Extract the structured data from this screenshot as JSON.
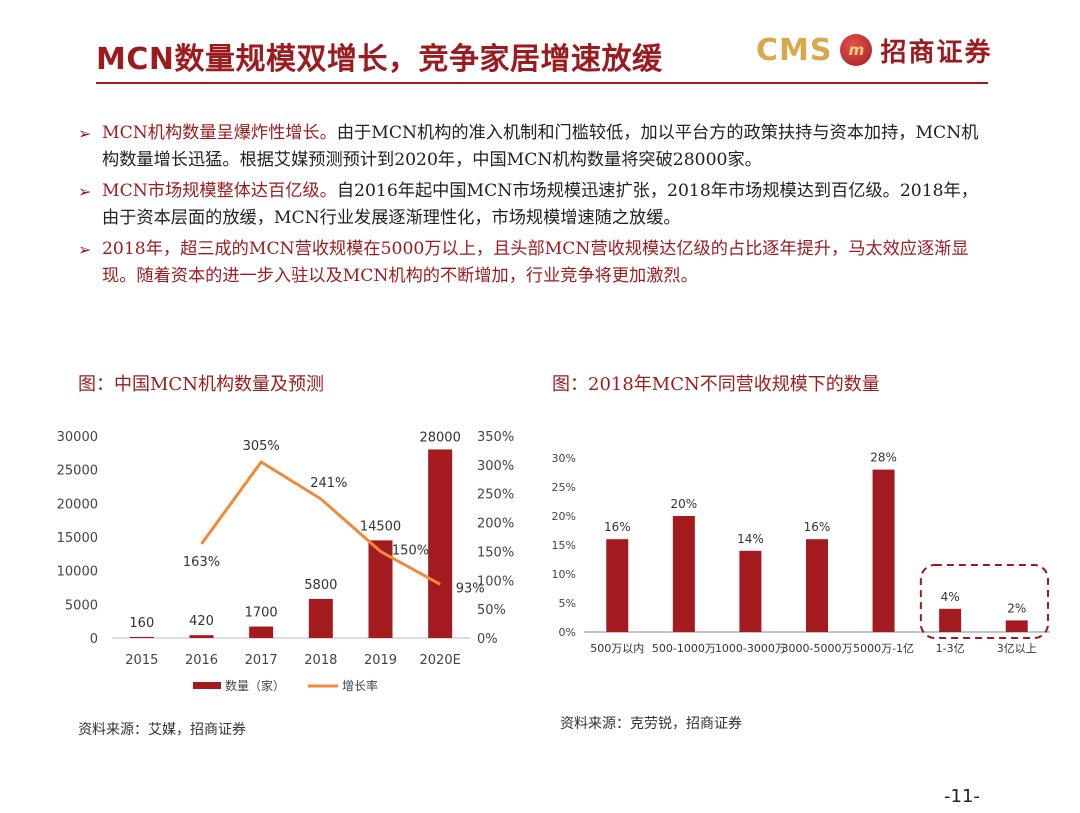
{
  "header": {
    "title": "MCN数量规模双增长，竞争家居增速放缓",
    "logo_text": "CMS",
    "logo_badge": "m",
    "logo_cn": "招商证券"
  },
  "bullets": [
    {
      "highlight": "MCN机构数量呈爆炸性增长。",
      "text": "由于MCN机构的准入机制和门槛较低，加以平台方的政策扶持与资本加持，MCN机构数量增长迅猛。根据艾媒预测预计到2020年，中国MCN机构数量将突破28000家。"
    },
    {
      "highlight": "MCN市场规模整体达百亿级。",
      "text": "自2016年起中国MCN市场规模迅速扩张，2018年市场规模达到百亿级。2018年，由于资本层面的放缓，MCN行业发展逐渐理性化，市场规模增速随之放缓。"
    },
    {
      "highlight": "",
      "text": "2018年，超三成的MCN营收规模在5000万以上，且头部MCN营收规模达亿级的占比逐年提升，马太效应逐渐显现。随着资本的进一步入驻以及MCN机构的不断增加，行业竞争将更加激烈。"
    }
  ],
  "left_chart": {
    "caption": "图：中国MCN机构数量及预测",
    "source": "资料来源：艾媒，招商证券"
  },
  "right_chart": {
    "caption": "图：2018年MCN不同营收规模下的数量",
    "source": "资料来源：克劳锐，招商证券"
  },
  "page_number": "-11-",
  "colors": {
    "bar": "#a31b1e",
    "line": "#ef8a3a",
    "accent": "#9b1b1f"
  },
  "chart_data": [
    {
      "type": "bar+line",
      "categories": [
        "2015",
        "2016",
        "2017",
        "2018",
        "2019",
        "2020E"
      ],
      "series": [
        {
          "name": "数量（家）",
          "type": "bar",
          "axis": "left",
          "values": [
            160,
            420,
            1700,
            5800,
            14500,
            28000
          ],
          "labels": [
            "160",
            "420",
            "1700",
            "5800",
            "14500",
            "28000"
          ]
        },
        {
          "name": "增长率",
          "type": "line",
          "axis": "right",
          "values": [
            null,
            163,
            305,
            241,
            150,
            93
          ],
          "labels": [
            "",
            "163%",
            "305%",
            "241%",
            "150%",
            "93%"
          ]
        }
      ],
      "y_left": {
        "ticks": [
          "0",
          "5000",
          "10000",
          "15000",
          "20000",
          "25000",
          "30000"
        ],
        "lim": [
          0,
          30000
        ]
      },
      "y_right": {
        "ticks": [
          "0%",
          "50%",
          "100%",
          "150%",
          "200%",
          "250%",
          "300%",
          "350%"
        ],
        "lim": [
          0,
          350
        ]
      },
      "legend": {
        "position": "bottom",
        "entries": [
          "数量（家）",
          "增长率"
        ]
      },
      "grid": false
    },
    {
      "type": "bar",
      "categories": [
        "500万以内",
        "500-1000万",
        "1000-3000万",
        "3000-5000万",
        "5000万-1亿",
        "1-3亿",
        "3亿以上"
      ],
      "values": [
        16,
        20,
        14,
        16,
        28,
        4,
        2
      ],
      "labels": [
        "16%",
        "20%",
        "14%",
        "16%",
        "28%",
        "4%",
        "2%"
      ],
      "y": {
        "ticks": [
          "0%",
          "5%",
          "10%",
          "15%",
          "20%",
          "25%",
          "30%"
        ],
        "lim": [
          0,
          30
        ]
      },
      "highlighted_categories": [
        "1-3亿",
        "3亿以上"
      ],
      "grid": false
    }
  ]
}
